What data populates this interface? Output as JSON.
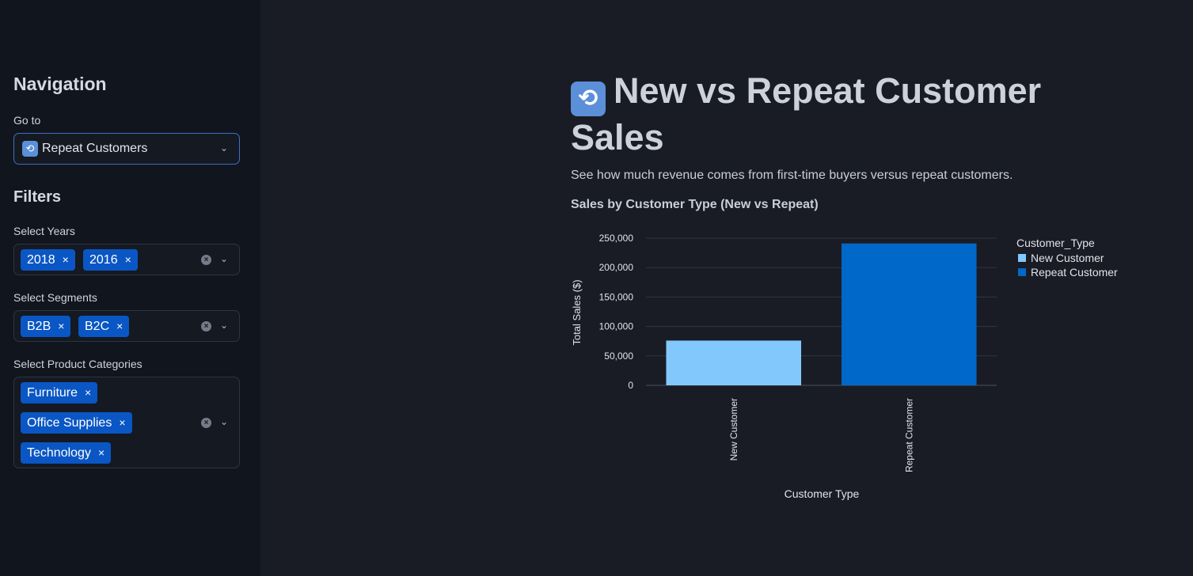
{
  "sidebar": {
    "nav_heading": "Navigation",
    "goto_label": "Go to",
    "goto_value": "Repeat Customers",
    "filters_heading": "Filters",
    "years": {
      "label": "Select Years",
      "chips": [
        "2018",
        "2016"
      ]
    },
    "segments": {
      "label": "Select Segments",
      "chips": [
        "B2B",
        "B2C"
      ]
    },
    "categories": {
      "label": "Select Product Categories",
      "chips": [
        "Furniture",
        "Office Supplies",
        "Technology"
      ]
    }
  },
  "main": {
    "title": "New vs Repeat Customer Sales",
    "description": "See how much revenue comes from first-time buyers versus repeat customers.",
    "chart_heading": "Sales by Customer Type (New vs Repeat)"
  },
  "icons": {
    "chip_remove": "×",
    "clear": "×",
    "title_icon": "repeat-icon"
  },
  "colors": {
    "new_customer": "#83c8fd",
    "repeat_customer": "#0068c9",
    "chip": "#0a56c4"
  },
  "chart_data": {
    "type": "bar",
    "categories": [
      "New Customer",
      "Repeat Customer"
    ],
    "values": [
      76000,
      241000
    ],
    "xlabel": "Customer Type",
    "ylabel": "Total Sales ($)",
    "ylim": [
      0,
      250000
    ],
    "yticks": [
      "0",
      "50,000",
      "100,000",
      "150,000",
      "200,000",
      "250,000"
    ],
    "legend_title": "Customer_Type",
    "legend_position": "top-right",
    "grid": true
  }
}
